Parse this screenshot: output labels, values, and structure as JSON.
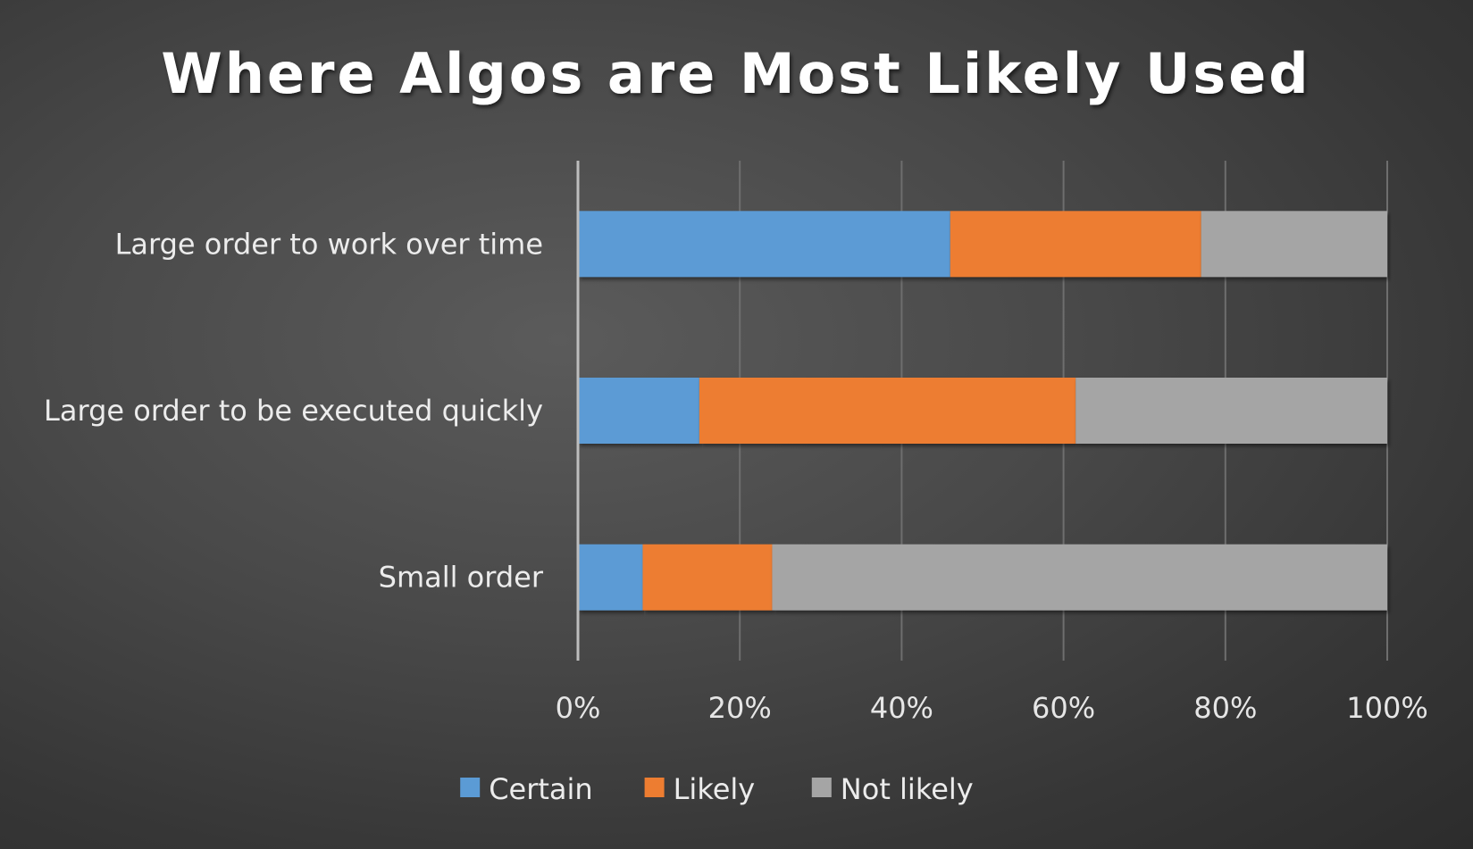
{
  "chart_data": {
    "type": "bar",
    "orientation": "horizontal",
    "stacking": "percent",
    "title": "Where Algos are Most Likely Used",
    "xlabel": "",
    "ylabel": "",
    "categories": [
      "Large order to work over time",
      "Large order to be executed quickly",
      "Small order"
    ],
    "series": [
      {
        "name": "Certain",
        "color": "#5b9bd5",
        "values": [
          46,
          15,
          8
        ]
      },
      {
        "name": "Likely",
        "color": "#ed7d31",
        "values": [
          31,
          46.5,
          16
        ]
      },
      {
        "name": "Not likely",
        "color": "#a5a5a5",
        "values": [
          23,
          38.5,
          76
        ]
      }
    ],
    "xlim": [
      0,
      100
    ],
    "xticks": [
      "0%",
      "20%",
      "40%",
      "60%",
      "80%",
      "100%"
    ],
    "grid": true,
    "legend": "bottom"
  }
}
